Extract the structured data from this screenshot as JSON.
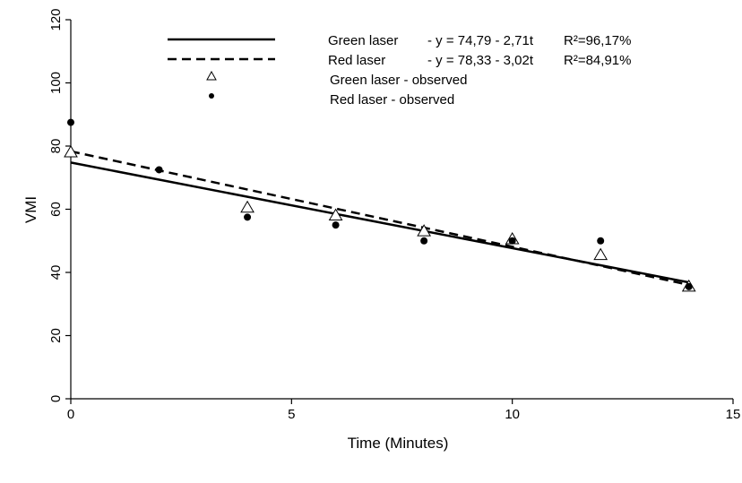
{
  "chart_data": {
    "type": "scatter",
    "title": "",
    "xlabel": "Time (Minutes)",
    "ylabel": "VMI",
    "xlim": [
      0,
      15
    ],
    "ylim": [
      0,
      120
    ],
    "xticks": [
      0,
      5,
      10,
      15
    ],
    "yticks": [
      0,
      20,
      40,
      60,
      80,
      100,
      120
    ],
    "grid": false,
    "legend_position": "top",
    "series": [
      {
        "name": "Green laser - observed",
        "marker": "open-triangle",
        "x": [
          0,
          4,
          6,
          8,
          10,
          12,
          14
        ],
        "y": [
          78,
          60.5,
          58,
          53,
          50.5,
          45.5,
          35.5
        ]
      },
      {
        "name": "Red laser - observed",
        "marker": "filled-circle",
        "x": [
          0,
          2,
          4,
          6,
          8,
          10,
          12,
          14
        ],
        "y": [
          87.5,
          72.5,
          57.5,
          55,
          50,
          50,
          50,
          35.5
        ]
      }
    ],
    "fits": [
      {
        "name": "Green laser",
        "equation": "- y = 74,79 - 2,71t",
        "r2": "R²=96,17%",
        "intercept": 74.79,
        "slope": -2.71,
        "x_range": [
          0,
          14
        ],
        "style": "solid"
      },
      {
        "name": "Red laser",
        "equation": "- y = 78,33 - 3,02t",
        "r2": "R²=84,91%",
        "intercept": 78.33,
        "slope": -3.02,
        "x_range": [
          0,
          14
        ],
        "style": "dashed"
      }
    ]
  }
}
